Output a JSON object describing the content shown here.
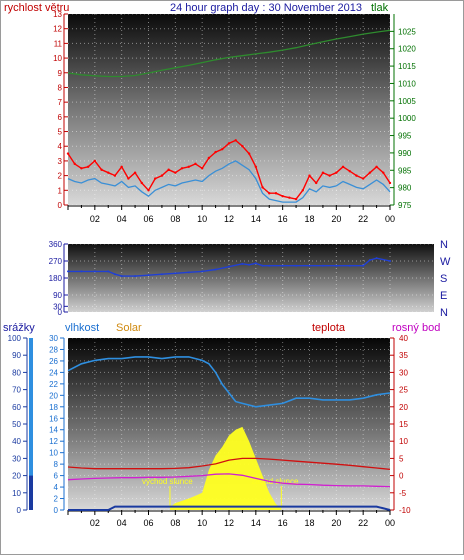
{
  "header": {
    "title": "24 hour graph day : 30 November 2013",
    "left_label": "rychlost větru",
    "right_label": "tlak"
  },
  "bottom_header": {
    "label_srazky": "srážky",
    "label_vlhkost": "vlhkost",
    "label_solar": "Solar",
    "label_teplota": "teplota",
    "label_rosny": "rosný bod"
  },
  "colors": {
    "wind": "#ff0000",
    "wind_avg": "#3a8fd6",
    "pressure": "#2e8b2e",
    "direction": "#1f3fd6",
    "humidity": "#2f8fe0",
    "temperature": "#d01010",
    "dewpoint": "#d020d0",
    "solar": "#ffff20",
    "rain": "#1a3aa0",
    "label_left": "#c00000",
    "label_title": "#1a1aa0",
    "label_pressure": "#007000",
    "label_humidity": "#1a6fd0",
    "label_solar": "#d08a10",
    "label_temp": "#c00000",
    "label_dew": "#c000c0",
    "label_direction": "#1a1aa0"
  },
  "chart_data": [
    {
      "id": "wind-pressure",
      "type": "line",
      "title": "24 hour graph day : 30 November 2013",
      "x_ticks": [
        "02",
        "04",
        "06",
        "08",
        "10",
        "12",
        "14",
        "16",
        "18",
        "20",
        "22",
        "00"
      ],
      "xlim_hours": [
        0,
        24
      ],
      "y_left": {
        "label": "rychlost větru",
        "ylim": [
          0,
          13
        ],
        "ticks": [
          0,
          1,
          2,
          3,
          4,
          5,
          6,
          7,
          8,
          9,
          10,
          11,
          12,
          13
        ]
      },
      "y_right": {
        "label": "tlak",
        "ylim": [
          975,
          1030
        ],
        "ticks": [
          975,
          980,
          985,
          990,
          995,
          1000,
          1005,
          1010,
          1015,
          1020,
          1025
        ]
      },
      "grid": true,
      "series": [
        {
          "name": "rychlost větru",
          "axis": "left",
          "x_hours": [
            0,
            0.5,
            1,
            1.5,
            2,
            2.5,
            3,
            3.5,
            4,
            4.5,
            5,
            5.5,
            6,
            6.5,
            7,
            7.5,
            8,
            8.5,
            9,
            9.5,
            10,
            10.5,
            11,
            11.5,
            12,
            12.5,
            13,
            13.5,
            14,
            14.5,
            15,
            15.5,
            16,
            16.5,
            17,
            17.5,
            18,
            18.5,
            19,
            19.5,
            20,
            20.5,
            21,
            21.5,
            22,
            22.5,
            23,
            23.5,
            24
          ],
          "values": [
            3.5,
            2.8,
            2.5,
            2.6,
            3.0,
            2.4,
            2.2,
            2.0,
            2.6,
            1.8,
            2.2,
            1.5,
            1.0,
            1.8,
            2.0,
            2.4,
            2.2,
            2.5,
            2.6,
            2.8,
            2.5,
            3.2,
            3.6,
            3.8,
            4.2,
            4.4,
            4.0,
            3.5,
            2.6,
            1.2,
            0.8,
            0.8,
            0.6,
            0.5,
            0.4,
            1.0,
            2.0,
            1.5,
            2.2,
            2.0,
            2.2,
            2.6,
            2.3,
            2.0,
            1.8,
            2.2,
            2.6,
            2.2,
            1.5
          ]
        },
        {
          "name": "rychlost větru průměr",
          "axis": "left",
          "x_hours": [
            0,
            0.5,
            1,
            1.5,
            2,
            2.5,
            3,
            3.5,
            4,
            4.5,
            5,
            5.5,
            6,
            6.5,
            7,
            7.5,
            8,
            8.5,
            9,
            9.5,
            10,
            10.5,
            11,
            11.5,
            12,
            12.5,
            13,
            13.5,
            14,
            14.5,
            15,
            15.5,
            16,
            16.5,
            17,
            17.5,
            18,
            18.5,
            19,
            19.5,
            20,
            20.5,
            21,
            21.5,
            22,
            22.5,
            23,
            23.5,
            24
          ],
          "values": [
            1.8,
            1.6,
            1.5,
            1.7,
            1.8,
            1.5,
            1.4,
            1.3,
            1.6,
            1.2,
            1.3,
            0.9,
            0.6,
            1.0,
            1.2,
            1.4,
            1.3,
            1.5,
            1.6,
            1.7,
            1.6,
            2.0,
            2.3,
            2.5,
            2.8,
            3.0,
            2.7,
            2.4,
            1.8,
            0.8,
            0.4,
            0.3,
            0.2,
            0.2,
            0.2,
            0.5,
            1.1,
            0.9,
            1.3,
            1.2,
            1.3,
            1.6,
            1.4,
            1.2,
            1.1,
            1.4,
            1.7,
            1.4,
            0.9
          ]
        },
        {
          "name": "tlak",
          "axis": "right",
          "x_hours": [
            0,
            1,
            2,
            3,
            4,
            5,
            6,
            7,
            8,
            9,
            10,
            11,
            12,
            13,
            14,
            15,
            16,
            17,
            18,
            19,
            20,
            21,
            22,
            23,
            24
          ],
          "values": [
            1013,
            1012.5,
            1012.2,
            1012,
            1012,
            1012.3,
            1013,
            1013.8,
            1014.5,
            1015.2,
            1016,
            1016.8,
            1017.5,
            1018,
            1018.5,
            1019,
            1019.6,
            1020.3,
            1021.2,
            1022,
            1022.8,
            1023.5,
            1024.2,
            1024.8,
            1025.3
          ]
        }
      ]
    },
    {
      "id": "wind-direction",
      "type": "line",
      "xlim_hours": [
        0,
        24
      ],
      "y_left": {
        "ylim": [
          0,
          360
        ],
        "ticks": [
          0,
          30,
          90,
          180,
          270,
          360
        ]
      },
      "y_right": {
        "ticks": [
          "N",
          "W",
          "S",
          "E",
          "N"
        ]
      },
      "grid": true,
      "series": [
        {
          "name": "směr větru",
          "x_hours": [
            0,
            1,
            2,
            3,
            3.5,
            4,
            5,
            6,
            7,
            8,
            9,
            10,
            11,
            12,
            13,
            13.5,
            14,
            14.5,
            15,
            16,
            17,
            18,
            19,
            20,
            21,
            22,
            22.5,
            23,
            24
          ],
          "values": [
            215,
            215,
            215,
            215,
            200,
            190,
            190,
            195,
            200,
            205,
            210,
            215,
            225,
            240,
            255,
            250,
            258,
            245,
            245,
            245,
            245,
            245,
            245,
            245,
            245,
            245,
            275,
            285,
            270
          ]
        }
      ]
    },
    {
      "id": "hum-temp-solar",
      "type": "line",
      "xlim_hours": [
        0,
        24
      ],
      "y_srazky": {
        "label": "srážky",
        "ylim": [
          0,
          100
        ],
        "ticks": [
          0,
          10,
          20,
          30,
          40,
          50,
          60,
          70,
          80,
          90,
          100
        ]
      },
      "y_vlhkost": {
        "label": "vlhkost",
        "ylim": [
          0,
          30
        ],
        "ticks": [
          0,
          2,
          4,
          6,
          8,
          10,
          12,
          14,
          16,
          18,
          20,
          22,
          24,
          26,
          28,
          30
        ]
      },
      "y_teplota": {
        "label": "teplota",
        "ylim": [
          -10,
          40
        ],
        "ticks": [
          -10,
          -5,
          0,
          5,
          10,
          15,
          20,
          25,
          30,
          35,
          40
        ]
      },
      "x_ticks": [
        "02",
        "04",
        "06",
        "08",
        "10",
        "12",
        "14",
        "16",
        "18",
        "20",
        "22",
        "00"
      ],
      "annotations": [
        {
          "text": "východ slunce",
          "x_hour": 7.6
        },
        {
          "text": "západ slunce",
          "x_hour": 15.9
        }
      ],
      "grid": true,
      "series": [
        {
          "name": "vlhkost",
          "x_hours": [
            0,
            1,
            2,
            3,
            4,
            5,
            6,
            7,
            8,
            9,
            10,
            10.5,
            11,
            11.5,
            12,
            12.5,
            13,
            14,
            15,
            16,
            17,
            18,
            19,
            20,
            21,
            22,
            23,
            24
          ],
          "values": [
            81,
            85,
            87,
            88,
            88,
            89,
            89,
            88,
            89,
            89,
            87,
            85,
            80,
            73,
            68,
            63,
            62,
            60,
            61,
            62,
            65,
            65,
            64,
            64,
            64,
            65,
            67,
            68
          ]
        },
        {
          "name": "teplota",
          "x_hours": [
            0,
            1,
            2,
            3,
            4,
            5,
            6,
            7,
            8,
            9,
            10,
            11,
            12,
            13,
            14,
            15,
            16,
            17,
            18,
            19,
            20,
            21,
            22,
            23,
            24
          ],
          "values": [
            2.5,
            2.2,
            2.0,
            2.0,
            2.0,
            2.0,
            2.0,
            2.0,
            2.1,
            2.3,
            2.8,
            3.4,
            4.5,
            5.0,
            5.0,
            4.8,
            4.5,
            4.2,
            3.9,
            3.6,
            3.3,
            3.0,
            2.6,
            2.2,
            1.8
          ]
        },
        {
          "name": "rosný bod",
          "x_hours": [
            0,
            1,
            2,
            3,
            4,
            5,
            6,
            7,
            8,
            9,
            10,
            11,
            12,
            13,
            14,
            15,
            16,
            17,
            18,
            19,
            20,
            21,
            22,
            23,
            24
          ],
          "values": [
            -1.2,
            -1.0,
            -0.8,
            -0.7,
            -0.6,
            -0.6,
            -0.5,
            -0.5,
            -0.4,
            -0.2,
            0.0,
            0.4,
            0.5,
            0.1,
            -0.8,
            -1.7,
            -2.2,
            -2.5,
            -2.6,
            -2.8,
            -2.9,
            -3.0,
            -3.0,
            -3.1,
            -3.2
          ]
        },
        {
          "name": "Solar",
          "x_hours": [
            7.6,
            8,
            9,
            9.5,
            10,
            10.5,
            11,
            11.5,
            12,
            12.5,
            13,
            13.5,
            14,
            14.5,
            15,
            15.5,
            15.9
          ],
          "values": [
            0.5,
            1.2,
            2.0,
            2.5,
            3.0,
            7.0,
            9.5,
            11.0,
            13.0,
            14.0,
            14.5,
            12.0,
            9.0,
            6.0,
            3.0,
            1.0,
            0.3
          ]
        },
        {
          "name": "srážky",
          "x_hours": [
            0,
            1,
            2,
            3,
            3.5,
            4,
            5,
            6,
            7,
            8,
            9,
            10,
            11,
            12,
            13,
            14,
            15,
            16,
            17,
            18,
            19,
            20,
            21,
            22,
            23,
            24
          ],
          "values": [
            0,
            0,
            0,
            0,
            2,
            2,
            2,
            2,
            2,
            2,
            2,
            2,
            2,
            2,
            2,
            2,
            2,
            2,
            2,
            2,
            2,
            2,
            2,
            2,
            2,
            0
          ]
        }
      ]
    }
  ]
}
